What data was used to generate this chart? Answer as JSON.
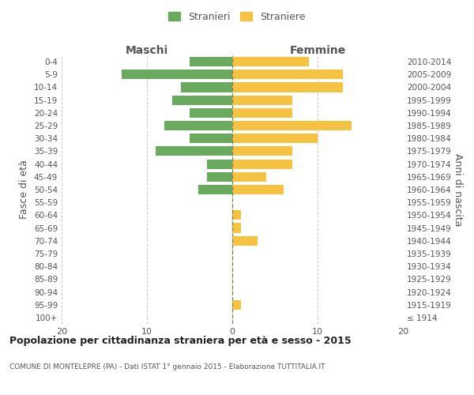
{
  "age_groups": [
    "100+",
    "95-99",
    "90-94",
    "85-89",
    "80-84",
    "75-79",
    "70-74",
    "65-69",
    "60-64",
    "55-59",
    "50-54",
    "45-49",
    "40-44",
    "35-39",
    "30-34",
    "25-29",
    "20-24",
    "15-19",
    "10-14",
    "5-9",
    "0-4"
  ],
  "birth_years": [
    "≤ 1914",
    "1915-1919",
    "1920-1924",
    "1925-1929",
    "1930-1934",
    "1935-1939",
    "1940-1944",
    "1945-1949",
    "1950-1954",
    "1955-1959",
    "1960-1964",
    "1965-1969",
    "1970-1974",
    "1975-1979",
    "1980-1984",
    "1985-1989",
    "1990-1994",
    "1995-1999",
    "2000-2004",
    "2005-2009",
    "2010-2014"
  ],
  "maschi": [
    0,
    0,
    0,
    0,
    0,
    0,
    0,
    0,
    0,
    0,
    4,
    3,
    3,
    9,
    5,
    8,
    5,
    7,
    6,
    13,
    5
  ],
  "femmine": [
    0,
    1,
    0,
    0,
    0,
    0,
    3,
    1,
    1,
    0,
    6,
    4,
    7,
    7,
    10,
    14,
    7,
    7,
    13,
    13,
    9
  ],
  "maschi_color": "#6aaa5e",
  "femmine_color": "#f5c242",
  "background_color": "#ffffff",
  "grid_color": "#cccccc",
  "title": "Popolazione per cittadinanza straniera per età e sesso - 2015",
  "subtitle": "COMUNE DI MONTELEPRE (PA) - Dati ISTAT 1° gennaio 2015 - Elaborazione TUTTITALIA.IT",
  "xlabel_left": "Maschi",
  "xlabel_right": "Femmine",
  "ylabel_left": "Fasce di età",
  "ylabel_right": "Anni di nascita",
  "legend_stranieri": "Stranieri",
  "legend_straniere": "Straniere",
  "xlim": 20
}
